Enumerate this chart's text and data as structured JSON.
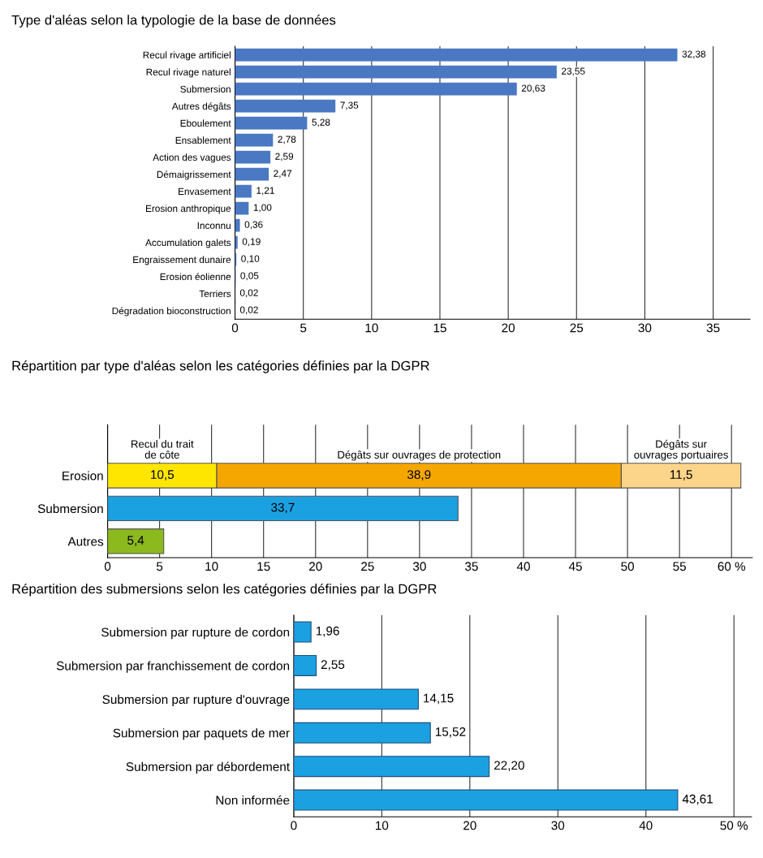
{
  "chart_data": [
    {
      "type": "bar",
      "orientation": "horizontal",
      "title": "Type d'aléas selon la typologie de la base de données",
      "categories": [
        "Recul rivage artificiel",
        "Recul rivage naturel",
        "Submersion",
        "Autres dégâts",
        "Eboulement",
        "Ensablement",
        "Action des vagues",
        "Démaigrissement",
        "Envasement",
        "Erosion anthropique",
        "Inconnu",
        "Accumulation galets",
        "Engraissement dunaire",
        "Erosion éolienne",
        "Terriers",
        "Dégradation bioconstruction"
      ],
      "series": [
        {
          "color": "#4a78c2",
          "values": [
            32.38,
            23.55,
            20.63,
            7.35,
            5.28,
            2.78,
            2.59,
            2.47,
            1.21,
            1.0,
            0.36,
            0.19,
            0.1,
            0.05,
            0.02,
            0.02
          ],
          "value_labels": [
            "32,38",
            "23,55",
            "20,63",
            "7,35",
            "5,28",
            "2,78",
            "2,59",
            "2,47",
            "1,21",
            "1,00",
            "0,36",
            "0,19",
            "0,10",
            "0,05",
            "0,02",
            "0,02"
          ]
        }
      ],
      "xlim": [
        0,
        37.7
      ],
      "xticks": [
        0,
        5,
        10,
        15,
        20,
        25,
        30,
        35
      ],
      "grid": "x",
      "legend": false
    },
    {
      "type": "bar",
      "orientation": "horizontal",
      "stacked": true,
      "title": "Répartition par type d'aléas selon les catégories définies par la DGPR",
      "categories": [
        "Erosion",
        "Submersion",
        "Autres"
      ],
      "series": [
        {
          "name": "Recul du trait\nde côte",
          "color": "#ffe600",
          "values": [
            10.5,
            null,
            null
          ],
          "value_labels": [
            "10,5",
            null,
            null
          ]
        },
        {
          "name": "Dégâts sur ouvrages de protection",
          "color": "#f5a700",
          "values": [
            38.9,
            null,
            null
          ],
          "value_labels": [
            "38,9",
            null,
            null
          ]
        },
        {
          "name": "Dégâts sur\nouvrages portuaires",
          "color": "#fdd58a",
          "values": [
            11.5,
            null,
            null
          ],
          "value_labels": [
            "11,5",
            null,
            null
          ]
        },
        {
          "color": "#1ba1e2",
          "values": [
            null,
            33.7,
            null
          ],
          "value_labels": [
            null,
            "33,7",
            null
          ]
        },
        {
          "color": "#8cb91e",
          "values": [
            null,
            null,
            5.4
          ],
          "value_labels": [
            null,
            null,
            "5,4"
          ]
        }
      ],
      "xlim": [
        0,
        62
      ],
      "xticks": [
        0,
        5,
        10,
        15,
        20,
        25,
        30,
        35,
        40,
        45,
        50,
        55,
        {
          "value": 60,
          "label": "60 %"
        }
      ],
      "grid": "x",
      "legend": false
    },
    {
      "type": "bar",
      "orientation": "horizontal",
      "title": "Répartition des submersions selon les catégories définies par la DGPR",
      "categories": [
        "Submersion par rupture de cordon",
        "Submersion par franchissement de cordon",
        "Submersion par rupture d'ouvrage",
        "Submersion par paquets de mer",
        "Submersion par débordement",
        "Non informée"
      ],
      "series": [
        {
          "color": "#1ba1e2",
          "values": [
            1.96,
            2.55,
            14.15,
            15.52,
            22.2,
            43.61
          ],
          "value_labels": [
            "1,96",
            "2,55",
            "14,15",
            "15,52",
            "22,20",
            "43,61"
          ]
        }
      ],
      "xlim": [
        0,
        52
      ],
      "xticks": [
        0,
        10,
        20,
        30,
        40,
        {
          "value": 50,
          "label": "50 %"
        }
      ],
      "grid": "x",
      "legend": false
    }
  ]
}
